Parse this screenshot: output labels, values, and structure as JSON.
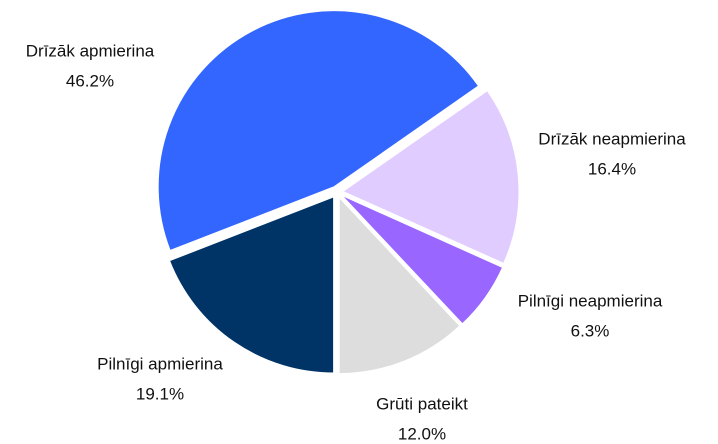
{
  "chart_data": {
    "type": "pie",
    "categories": [
      "Pilnīgi apmierina",
      "Drīzāk apmierina",
      "Drīzāk neapmierina",
      "Pilnīgi neapmierina",
      "Grūti pateikt"
    ],
    "values": [
      19.1,
      46.2,
      16.4,
      6.3,
      12.0
    ],
    "value_labels": [
      "19.1%",
      "46.2%",
      "16.4%",
      "6.3%",
      "12.0%"
    ],
    "colors": [
      "#003366",
      "#3366ff",
      "#e0ccff",
      "#9966ff",
      "#dddddd"
    ]
  }
}
